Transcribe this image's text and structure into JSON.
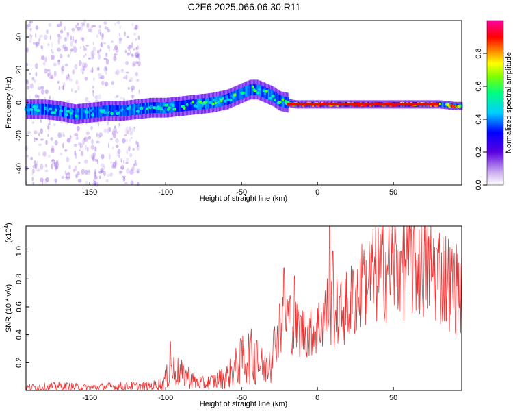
{
  "title": "C2E6.2025.066.06.30.R11",
  "chart_data": [
    {
      "type": "heatmap",
      "xlabel": "Height of straight line (km)",
      "ylabel": "Frequency (Hz)",
      "xlim": [
        -192,
        95
      ],
      "ylim": [
        -50,
        50
      ],
      "xticks": [
        -150,
        -100,
        -50,
        0,
        50
      ],
      "yticks": [
        -40,
        -20,
        0,
        20,
        40
      ],
      "colorbar": {
        "label": "Normalized spectral amplitude",
        "range": [
          0,
          1
        ],
        "ticks": [
          "0.0",
          "0.2",
          "0.4",
          "0.6",
          "0.8"
        ],
        "colormap": [
          "#ffffff",
          "#8a2be2",
          "#0000ff",
          "#00d0ff",
          "#00ff80",
          "#80ff00",
          "#ffff00",
          "#ff8000",
          "#ff0000",
          "#ff00a0"
        ]
      },
      "ridge": {
        "x": [
          -192,
          -180,
          -170,
          -160,
          -150,
          -140,
          -130,
          -120,
          -110,
          -100,
          -90,
          -80,
          -70,
          -60,
          -50,
          -45,
          -40,
          -35,
          -30,
          -25,
          -20,
          -15,
          -10,
          0,
          10,
          20,
          30,
          40,
          50,
          60,
          70,
          80,
          90,
          95
        ],
        "freq": [
          -4,
          -4,
          -5,
          -7,
          -6,
          -5,
          -5,
          -4,
          -3,
          -3,
          -2,
          -1,
          0,
          2,
          6,
          8,
          8,
          6,
          4,
          1,
          0,
          -1,
          -1,
          -1,
          -1,
          -1,
          -1,
          -1,
          -1,
          -1,
          -1,
          -1,
          -2,
          -2
        ]
      }
    },
    {
      "type": "line",
      "xlabel": "Height of straight line (km)",
      "ylabel": "SNR (10 * v/v)",
      "y_multiplier": "(x10",
      "y_multiplier_exp": "4",
      "xlim": [
        -192,
        95
      ],
      "ylim": [
        0,
        1.18
      ],
      "xticks": [
        -150,
        -100,
        -50,
        0,
        50
      ],
      "yticks": [
        0.2,
        0.4,
        0.6,
        0.8,
        1.0
      ],
      "color": "#ee3333",
      "envelope": {
        "x": [
          -192,
          -170,
          -150,
          -130,
          -110,
          -102,
          -98,
          -95,
          -90,
          -85,
          -80,
          -75,
          -70,
          -65,
          -60,
          -55,
          -50,
          -45,
          -40,
          -35,
          -32,
          -28,
          -25,
          -22,
          -20,
          -15,
          -10,
          -5,
          0,
          5,
          8,
          10,
          15,
          20,
          25,
          30,
          35,
          40,
          45,
          50,
          55,
          60,
          65,
          70,
          75,
          80,
          85,
          90,
          95
        ],
        "mean": [
          0.02,
          0.03,
          0.02,
          0.03,
          0.03,
          0.05,
          0.12,
          0.15,
          0.12,
          0.1,
          0.06,
          0.05,
          0.06,
          0.08,
          0.1,
          0.15,
          0.22,
          0.25,
          0.22,
          0.15,
          0.25,
          0.35,
          0.42,
          0.5,
          0.55,
          0.45,
          0.42,
          0.4,
          0.45,
          0.55,
          0.6,
          0.55,
          0.55,
          0.6,
          0.68,
          0.75,
          0.8,
          0.85,
          0.88,
          0.9,
          0.92,
          0.93,
          0.92,
          0.9,
          0.88,
          0.85,
          0.8,
          0.75,
          0.72
        ],
        "peaks": [
          [
            -97,
            0.35
          ],
          [
            -50,
            0.36
          ],
          [
            -40,
            0.36
          ],
          [
            -25,
            0.62
          ],
          [
            -22,
            0.88
          ],
          [
            -15,
            0.82
          ],
          [
            8,
            1.18
          ],
          [
            10,
            1.0
          ],
          [
            30,
            0.9
          ],
          [
            55,
            1.0
          ]
        ]
      }
    }
  ]
}
